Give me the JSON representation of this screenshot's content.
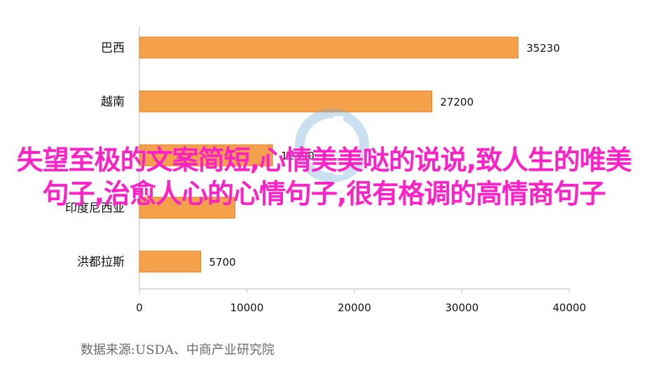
{
  "chart_data": {
    "type": "bar",
    "orientation": "horizontal",
    "categories": [
      "巴西",
      "越南",
      "",
      "印度尼西亚",
      "洪都拉斯"
    ],
    "values": [
      35230,
      27200,
      12390,
      8900,
      5700
    ],
    "data_labels": [
      "35230",
      "27200",
      "12390",
      "",
      "5700"
    ],
    "xlim": [
      0,
      40000
    ],
    "xticks": [
      0,
      10000,
      20000,
      30000,
      40000
    ],
    "grid": false,
    "bar_color": "#f5a04a",
    "bar_edge_color": "#e0801e"
  },
  "source_note": "数据来源:USDA、中商产业研究院",
  "overlay_title": "失望至极的文案简短,心情美美哒的说说,致人生的唯美句子,治愈人心的心情句子,很有格调的高情商句子",
  "colors": {
    "overlay_text": "#ff20c8",
    "axis": "#bbbbbb"
  }
}
